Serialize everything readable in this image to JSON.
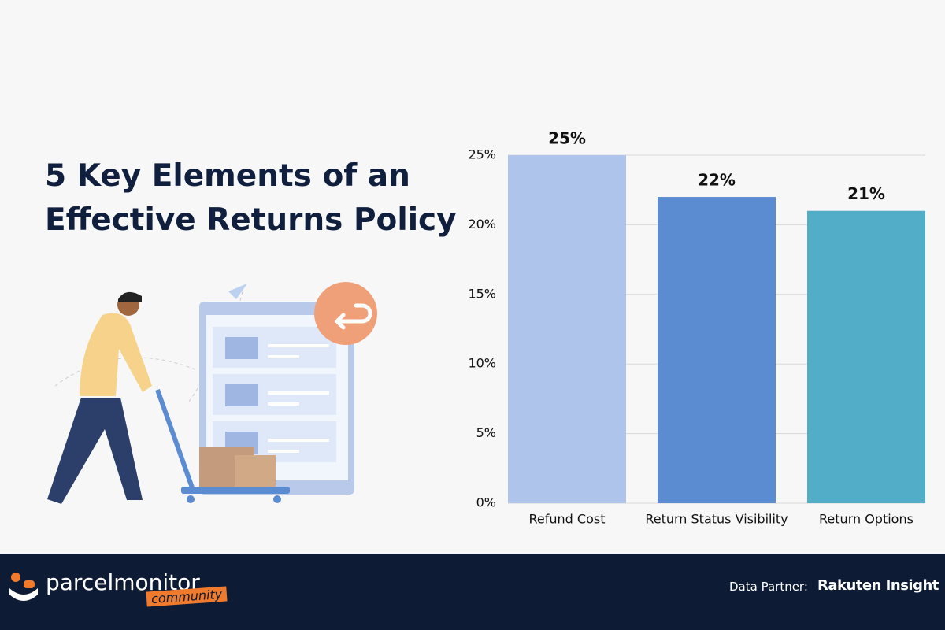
{
  "chart_data": {
    "type": "bar",
    "title": "5 Key Elements of an Effective Returns Policy",
    "categories": [
      "Refund Cost",
      "Return Status Visibility",
      "Return Options"
    ],
    "values": [
      25,
      22,
      21
    ],
    "value_labels": [
      "25%",
      "22%",
      "21%"
    ],
    "colors": [
      "#aec4ea",
      "#5b8bd1",
      "#52adc9"
    ],
    "ylim": [
      0,
      25
    ],
    "yticks": [
      {
        "value": 0,
        "label": "0%"
      },
      {
        "value": 5,
        "label": "5%"
      },
      {
        "value": 10,
        "label": "10%"
      },
      {
        "value": 15,
        "label": "15%"
      },
      {
        "value": 20,
        "label": "20%"
      },
      {
        "value": 25,
        "label": "25%"
      }
    ],
    "grid": true
  },
  "footer": {
    "brand": "parcelmonitor",
    "badge": "community",
    "partner_label": "Data Partner:",
    "partner": "Rakuten Insight"
  }
}
